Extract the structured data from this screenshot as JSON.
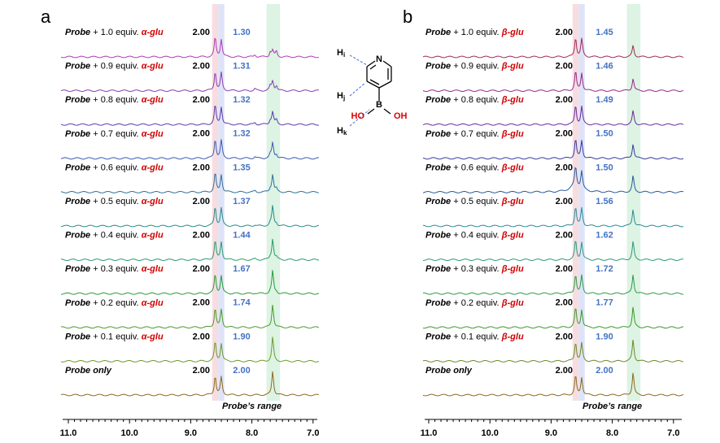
{
  "panels": [
    {
      "letter": "a",
      "range_label": "Probe’s range",
      "ticks": [
        "11.0",
        "10.0",
        "9.0",
        "8.0",
        "7.0"
      ],
      "rows": [
        {
          "probe": "Probe",
          "amount": "+ 1.0 equiv.",
          "analyte": "α-glu",
          "int_left": "2.00",
          "int_right": "1.30"
        },
        {
          "probe": "Probe",
          "amount": "+ 0.9 equiv.",
          "analyte": "α-glu",
          "int_left": "2.00",
          "int_right": "1.31"
        },
        {
          "probe": "Probe",
          "amount": "+ 0.8 equiv.",
          "analyte": "α-glu",
          "int_left": "2.00",
          "int_right": "1.32"
        },
        {
          "probe": "Probe",
          "amount": "+ 0.7 equiv.",
          "analyte": "α-glu",
          "int_left": "2.00",
          "int_right": "1.32"
        },
        {
          "probe": "Probe",
          "amount": "+ 0.6 equiv.",
          "analyte": "α-glu",
          "int_left": "2.00",
          "int_right": "1.35"
        },
        {
          "probe": "Probe",
          "amount": "+ 0.5 equiv.",
          "analyte": "α-glu",
          "int_left": "2.00",
          "int_right": "1.37"
        },
        {
          "probe": "Probe",
          "amount": "+ 0.4 equiv.",
          "analyte": "α-glu",
          "int_left": "2.00",
          "int_right": "1.44"
        },
        {
          "probe": "Probe",
          "amount": "+ 0.3 equiv.",
          "analyte": "α-glu",
          "int_left": "2.00",
          "int_right": "1.67"
        },
        {
          "probe": "Probe",
          "amount": "+ 0.2 equiv.",
          "analyte": "α-glu",
          "int_left": "2.00",
          "int_right": "1.74"
        },
        {
          "probe": "Probe",
          "amount": "+ 0.1 equiv.",
          "analyte": "α-glu",
          "int_left": "2.00",
          "int_right": "1.90"
        },
        {
          "probe": "Probe only",
          "int_left": "2.00",
          "int_right": "2.00"
        }
      ]
    },
    {
      "letter": "b",
      "range_label": "Probe’s range",
      "ticks": [
        "11.0",
        "10.0",
        "9.0",
        "8.0",
        "7.0"
      ],
      "rows": [
        {
          "probe": "Probe",
          "amount": "+ 1.0 equiv.",
          "analyte": "β-glu",
          "int_left": "2.00",
          "int_right": "1.45"
        },
        {
          "probe": "Probe",
          "amount": "+ 0.9 equiv.",
          "analyte": "β-glu",
          "int_left": "2.00",
          "int_right": "1.46"
        },
        {
          "probe": "Probe",
          "amount": "+ 0.8 equiv.",
          "analyte": "β-glu",
          "int_left": "2.00",
          "int_right": "1.49"
        },
        {
          "probe": "Probe",
          "amount": "+ 0.7 equiv.",
          "analyte": "β-glu",
          "int_left": "2.00",
          "int_right": "1.50"
        },
        {
          "probe": "Probe",
          "amount": "+ 0.6 equiv.",
          "analyte": "β-glu",
          "int_left": "2.00",
          "int_right": "1.50"
        },
        {
          "probe": "Probe",
          "amount": "+ 0.5 equiv.",
          "analyte": "β-glu",
          "int_left": "2.00",
          "int_right": "1.56"
        },
        {
          "probe": "Probe",
          "amount": "+ 0.4 equiv.",
          "analyte": "β-glu",
          "int_left": "2.00",
          "int_right": "1.62"
        },
        {
          "probe": "Probe",
          "amount": "+ 0.3 equiv.",
          "analyte": "β-glu",
          "int_left": "2.00",
          "int_right": "1.72"
        },
        {
          "probe": "Probe",
          "amount": "+ 0.2 equiv.",
          "analyte": "β-glu",
          "int_left": "2.00",
          "int_right": "1.77"
        },
        {
          "probe": "Probe",
          "amount": "+ 0.1 equiv.",
          "analyte": "β-glu",
          "int_left": "2.00",
          "int_right": "1.90"
        },
        {
          "probe": "Probe only",
          "int_left": "2.00",
          "int_right": "2.00"
        }
      ]
    }
  ],
  "molecule": {
    "n": "N",
    "b": "B",
    "ho": "HO",
    "oh": "OH",
    "h_labels": [
      {
        "h": "H",
        "sub": "i"
      },
      {
        "h": "H",
        "sub": "j"
      },
      {
        "h": "H",
        "sub": "k"
      }
    ]
  }
}
